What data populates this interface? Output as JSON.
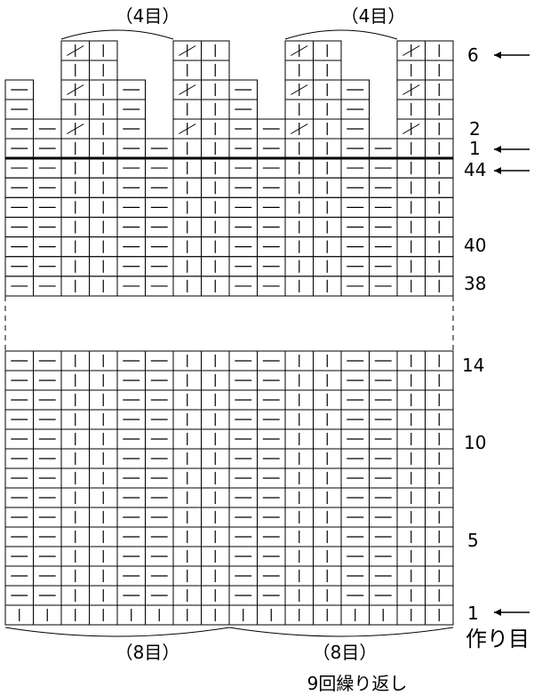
{
  "diagram": {
    "top_group_labels": [
      "（4目）",
      "（4目）"
    ],
    "bottom_group_labels": [
      "（8目）",
      "（8目）"
    ],
    "row_labels_lower": [
      "14",
      "10",
      "5",
      "1"
    ],
    "row_labels_upper": [
      "44",
      "40",
      "38"
    ],
    "row_labels_bindoff": [
      "6",
      "2",
      "1"
    ],
    "cast_on_label": "作り目",
    "repeat_label": "9回繰り返し",
    "symbols": {
      "knit": "|",
      "purl": "—",
      "decrease": "ssk"
    },
    "pattern_repeat": [
      "purl",
      "purl",
      "knit",
      "knit",
      "purl",
      "purl",
      "knit",
      "knit"
    ],
    "stitch_count": 16
  }
}
